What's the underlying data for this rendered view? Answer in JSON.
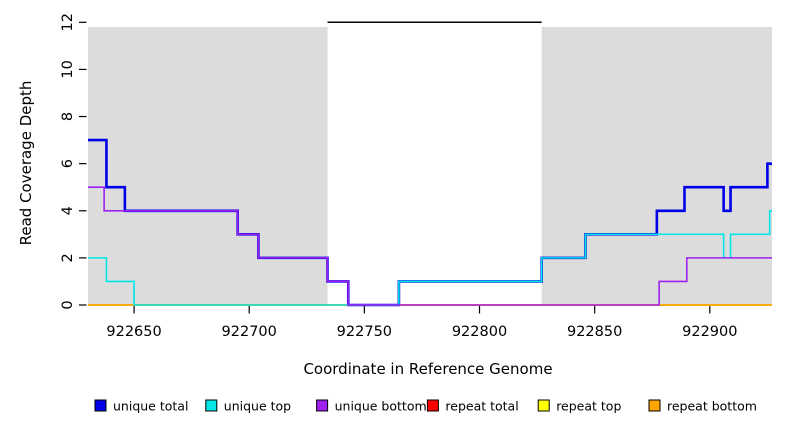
{
  "figure": {
    "background": "#FFFFFF",
    "text_color": "#000000"
  },
  "chart_data": {
    "type": "line",
    "line_style": "step-post",
    "title": "",
    "xlabel": "Coordinate in Reference Genome",
    "ylabel": "Read Coverage Depth",
    "xlim": [
      922630,
      922927
    ],
    "ylim": [
      0,
      12
    ],
    "xticks": [
      922650,
      922700,
      922750,
      922800,
      922850,
      922900
    ],
    "yticks": [
      0,
      2,
      4,
      6,
      8,
      10,
      12
    ],
    "grid": false,
    "legend_position": "bottom",
    "background_shading": {
      "color": "#DCDCDC",
      "regions": [
        {
          "from": 922630,
          "to": 922734
        },
        {
          "from": 922827,
          "to": 922927
        }
      ]
    },
    "top_marker_line": {
      "y": 12,
      "from": 922734,
      "to": 922827,
      "color": "#000000"
    },
    "series": [
      {
        "name": "unique total",
        "color": "#0000E6",
        "emphasis": true,
        "end": 922927,
        "points": [
          [
            922630,
            7
          ],
          [
            922638,
            5
          ],
          [
            922646,
            4
          ],
          [
            922695,
            3
          ],
          [
            922704,
            2
          ],
          [
            922734,
            1
          ],
          [
            922743,
            0
          ],
          [
            922765,
            1
          ],
          [
            922827,
            2
          ],
          [
            922846,
            3
          ],
          [
            922877,
            4
          ],
          [
            922889,
            5
          ],
          [
            922906,
            4
          ],
          [
            922909,
            5
          ],
          [
            922925,
            6
          ]
        ]
      },
      {
        "name": "unique top",
        "color": "#00E6E6",
        "emphasis": false,
        "end": 922927,
        "points": [
          [
            922630,
            2
          ],
          [
            922638,
            1
          ],
          [
            922650,
            0
          ],
          [
            922765,
            1
          ],
          [
            922827,
            2
          ],
          [
            922846,
            3
          ],
          [
            922906,
            2
          ],
          [
            922909,
            3
          ],
          [
            922926,
            4
          ]
        ]
      },
      {
        "name": "unique bottom",
        "color": "#A020F0",
        "emphasis": false,
        "end": 922927,
        "points": [
          [
            922630,
            5
          ],
          [
            922637,
            4
          ],
          [
            922695,
            3
          ],
          [
            922704,
            2
          ],
          [
            922734,
            1
          ],
          [
            922743,
            0
          ],
          [
            922878,
            1
          ],
          [
            922890,
            2
          ]
        ]
      },
      {
        "name": "repeat total",
        "color": "#FF0000",
        "emphasis": false,
        "end": 922927,
        "points": [
          [
            922630,
            0
          ]
        ]
      },
      {
        "name": "repeat top",
        "color": "#FFFF00",
        "emphasis": false,
        "end": 922927,
        "points": [
          [
            922630,
            0
          ]
        ]
      },
      {
        "name": "repeat bottom",
        "color": "#FFA500",
        "emphasis": false,
        "end": 922927,
        "points": [
          [
            922630,
            0
          ]
        ]
      }
    ],
    "legend": [
      {
        "label": "unique total",
        "color": "#0000E6"
      },
      {
        "label": "unique top",
        "color": "#00E6E6"
      },
      {
        "label": "unique bottom",
        "color": "#A020F0"
      },
      {
        "label": "repeat total",
        "color": "#FF0000"
      },
      {
        "label": "repeat top",
        "color": "#FFFF00"
      },
      {
        "label": "repeat bottom",
        "color": "#FFA500"
      }
    ]
  }
}
